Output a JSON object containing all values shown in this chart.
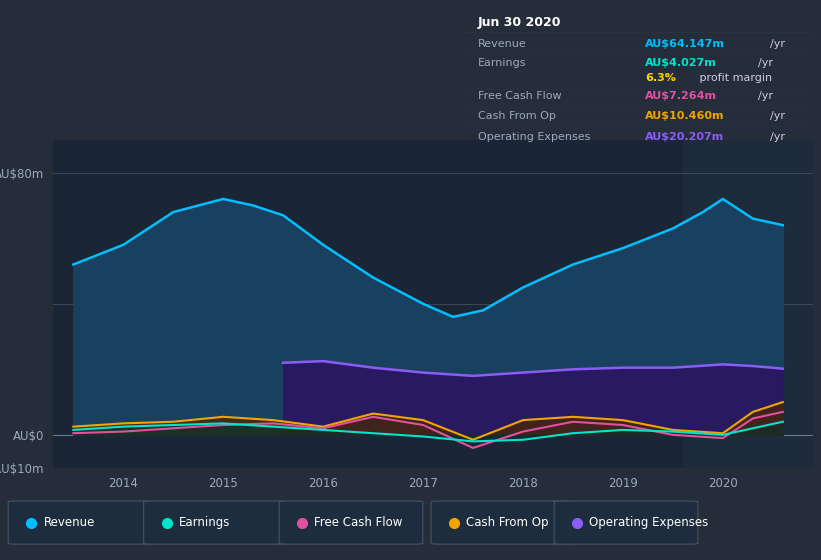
{
  "bg_color": "#252d3a",
  "plot_bg_color": "#1a2535",
  "highlight_bg": "#1e2d40",
  "title_box_bg": "#0a0d12",
  "ylim": [
    -10,
    90
  ],
  "legend_items": [
    {
      "label": "Revenue",
      "color": "#00bfff"
    },
    {
      "label": "Earnings",
      "color": "#00e5cc"
    },
    {
      "label": "Free Cash Flow",
      "color": "#e052a0"
    },
    {
      "label": "Cash From Op",
      "color": "#f0a500"
    },
    {
      "label": "Operating Expenses",
      "color": "#8b5cf6"
    }
  ],
  "tooltip": {
    "title": "Jun 30 2020",
    "rows": [
      {
        "label": "Revenue",
        "value": "AU$64.147m",
        "unit": "/yr",
        "value_color": "#00bfff"
      },
      {
        "label": "Earnings",
        "value": "AU$4.027m",
        "unit": "/yr",
        "value_color": "#00e5cc"
      },
      {
        "label": "",
        "value": "6.3%",
        "unit": " profit margin",
        "value_color": "#ffd700"
      },
      {
        "label": "Free Cash Flow",
        "value": "AU$7.264m",
        "unit": "/yr",
        "value_color": "#e052a0"
      },
      {
        "label": "Cash From Op",
        "value": "AU$10.460m",
        "unit": "/yr",
        "value_color": "#f0a500"
      },
      {
        "label": "Operating Expenses",
        "value": "AU$20.207m",
        "unit": "/yr",
        "value_color": "#8b5cf6"
      }
    ]
  },
  "revenue_x": [
    2013.5,
    2014.0,
    2014.5,
    2015.0,
    2015.3,
    2015.6,
    2016.0,
    2016.5,
    2017.0,
    2017.3,
    2017.6,
    2018.0,
    2018.5,
    2019.0,
    2019.5,
    2019.8,
    2020.0,
    2020.3,
    2020.6
  ],
  "revenue_y": [
    52,
    58,
    68,
    72,
    70,
    67,
    58,
    48,
    40,
    36,
    38,
    45,
    52,
    57,
    63,
    68,
    72,
    66,
    64
  ],
  "earnings_x": [
    2013.5,
    2014.0,
    2014.5,
    2015.0,
    2015.5,
    2016.0,
    2016.5,
    2017.0,
    2017.5,
    2018.0,
    2018.5,
    2019.0,
    2019.5,
    2020.0,
    2020.3,
    2020.6
  ],
  "earnings_y": [
    1.5,
    2.5,
    3,
    3.5,
    2.5,
    1.5,
    0.5,
    -0.5,
    -2,
    -1.5,
    0.5,
    1.5,
    1,
    0,
    2,
    4
  ],
  "fcf_x": [
    2013.5,
    2014.0,
    2014.5,
    2015.0,
    2015.5,
    2016.0,
    2016.5,
    2017.0,
    2017.5,
    2018.0,
    2018.5,
    2019.0,
    2019.5,
    2020.0,
    2020.3,
    2020.6
  ],
  "fcf_y": [
    0.5,
    1,
    2,
    3,
    3.5,
    2,
    5.5,
    3,
    -4,
    1,
    4,
    3,
    0,
    -1,
    5,
    7
  ],
  "cashop_x": [
    2013.5,
    2014.0,
    2014.5,
    2015.0,
    2015.5,
    2016.0,
    2016.5,
    2017.0,
    2017.5,
    2018.0,
    2018.5,
    2019.0,
    2019.5,
    2020.0,
    2020.3,
    2020.6
  ],
  "cashop_y": [
    2.5,
    3.5,
    4,
    5.5,
    4.5,
    2.5,
    6.5,
    4.5,
    -1.5,
    4.5,
    5.5,
    4.5,
    1.5,
    0.5,
    7,
    10
  ],
  "opex_x": [
    2015.6,
    2016.0,
    2016.5,
    2017.0,
    2017.5,
    2018.0,
    2018.5,
    2019.0,
    2019.5,
    2020.0,
    2020.3,
    2020.6
  ],
  "opex_y": [
    22,
    22.5,
    20.5,
    19,
    18,
    19,
    20,
    20.5,
    20.5,
    21.5,
    21,
    20.2
  ],
  "highlight_x_start": 2019.6,
  "highlight_x_end": 2021.0,
  "xmin": 2013.3,
  "xmax": 2020.9
}
